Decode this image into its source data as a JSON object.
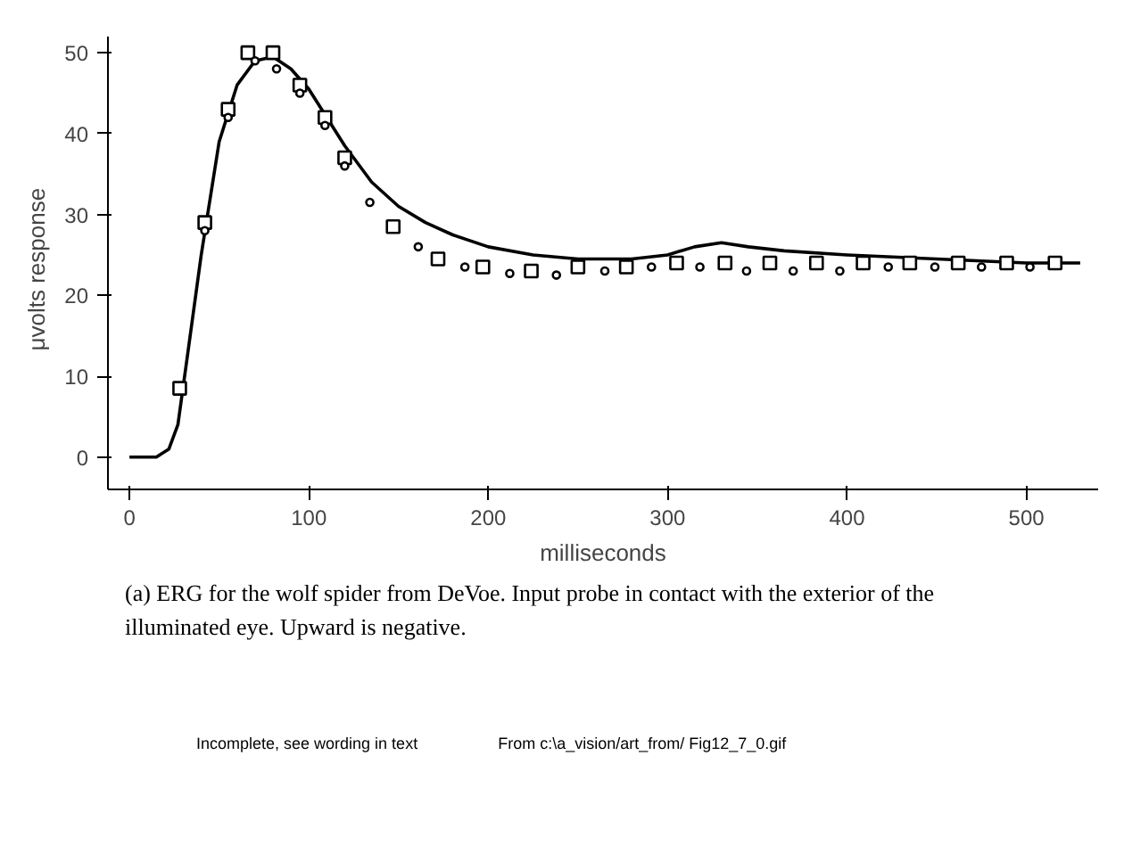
{
  "chart_data": {
    "type": "line",
    "xlabel": "milliseconds",
    "ylabel": "μvolts   response",
    "xlim": [
      -12,
      540
    ],
    "ylim": [
      -4,
      52
    ],
    "xticks": [
      0,
      100,
      200,
      300,
      400,
      500
    ],
    "yticks": [
      0,
      10,
      20,
      30,
      40,
      50
    ],
    "grid": false,
    "series": [
      {
        "color": "#000000",
        "marker": "none",
        "x": [
          0,
          15,
          22,
          27,
          32,
          40,
          50,
          60,
          70,
          80,
          90,
          100,
          110,
          120,
          135,
          150,
          165,
          180,
          200,
          225,
          250,
          280,
          300,
          315,
          330,
          345,
          365,
          400,
          450,
          500,
          530
        ],
        "values": [
          0,
          0,
          1,
          4,
          12,
          25,
          39,
          46,
          49,
          49.5,
          48,
          45.5,
          42,
          38.5,
          34,
          31,
          29,
          27.5,
          26,
          25,
          24.5,
          24.5,
          25,
          26,
          26.5,
          26,
          25.5,
          25,
          24.5,
          24,
          24
        ]
      },
      {
        "type": "scatter",
        "color": "#000000",
        "marker": "square",
        "x": [
          28,
          42,
          55,
          66,
          80,
          95,
          109,
          120,
          147,
          172,
          197,
          224,
          250,
          277,
          305,
          332,
          357,
          383,
          409,
          435,
          462,
          489,
          516
        ],
        "values": [
          8.5,
          29,
          43,
          50,
          50,
          46,
          42,
          37,
          28.5,
          24.5,
          23.5,
          23,
          23.5,
          23.5,
          24,
          24,
          24,
          24,
          24,
          24,
          24,
          24,
          24
        ]
      },
      {
        "type": "scatter",
        "color": "#000000",
        "marker": "circle",
        "x": [
          42,
          55,
          70,
          82,
          95,
          109,
          120,
          134,
          161,
          187,
          212,
          238,
          265,
          291,
          318,
          344,
          370,
          396,
          423,
          449,
          475,
          502
        ],
        "values": [
          28,
          42,
          49,
          48,
          45,
          41,
          36,
          31.5,
          26,
          23.5,
          22.7,
          22.5,
          23,
          23.5,
          23.5,
          23,
          23,
          23,
          23.5,
          23.5,
          23.5,
          23.5
        ]
      }
    ],
    "annotations": [
      "(a) ERG for the wolf spider from DeVoe. Input probe in contact with the exterior of the illuminated eye. Upward is negative.",
      "Incomplete, see wording in text",
      "From c:\\a_vision/art_from/ Fig12_7_0.gif"
    ]
  }
}
